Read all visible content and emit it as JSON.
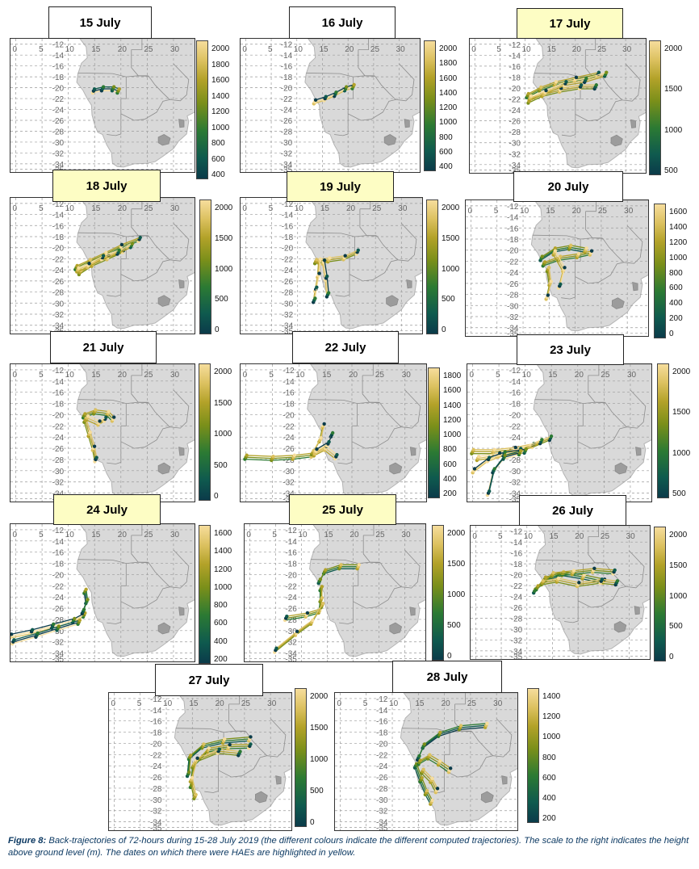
{
  "figure": {
    "caption_label": "Figure 8:",
    "caption_text": " Back-trajectories of 72-hours during 15-28 July 2019 (the different colours indicate the different computed trajectories). The scale to the right indicates the height above ground level (m). The dates on which there were HAEs are highlighted in yellow."
  },
  "map_axes": {
    "longitude_labels": [
      "0",
      "5",
      "10",
      "15",
      "20",
      "25",
      "30"
    ],
    "latitude_labels": [
      "-12",
      "-14",
      "-16",
      "-18",
      "-20",
      "-22",
      "-24",
      "-26",
      "-28",
      "-30",
      "-32",
      "-34",
      "-35"
    ]
  },
  "colors": {
    "hae_highlight": "#fdfdc4",
    "land": "#d9d9d9",
    "grid": "#9a9a9a",
    "traj_low": "#0b3b4a",
    "traj_mid": "#2c7a33",
    "traj_high": "#f6dd9c",
    "caption": "#0d3a63"
  },
  "panels": [
    {
      "date": "15 July",
      "hae": false,
      "scale": [
        "2000",
        "1800",
        "1600",
        "1400",
        "1200",
        "1000",
        "800",
        "600",
        "400"
      ]
    },
    {
      "date": "16 July",
      "hae": false,
      "scale": [
        "2000",
        "1800",
        "1600",
        "1400",
        "1200",
        "1000",
        "800",
        "600",
        "400"
      ]
    },
    {
      "date": "17 July",
      "hae": true,
      "scale": [
        "2000",
        "1500",
        "1000",
        "500"
      ]
    },
    {
      "date": "18 July",
      "hae": true,
      "scale": [
        "2000",
        "1500",
        "1000",
        "500",
        "0"
      ]
    },
    {
      "date": "19 July",
      "hae": true,
      "scale": [
        "2000",
        "1500",
        "1000",
        "500",
        "0"
      ]
    },
    {
      "date": "20 July",
      "hae": false,
      "scale": [
        "1600",
        "1400",
        "1200",
        "1000",
        "800",
        "600",
        "400",
        "200",
        "0"
      ]
    },
    {
      "date": "21 July",
      "hae": false,
      "scale": [
        "2000",
        "1500",
        "1000",
        "500",
        "0"
      ]
    },
    {
      "date": "22 July",
      "hae": false,
      "scale": [
        "1800",
        "1600",
        "1400",
        "1200",
        "1000",
        "800",
        "600",
        "400",
        "200"
      ]
    },
    {
      "date": "23 July",
      "hae": false,
      "scale": [
        "2000",
        "1500",
        "1000",
        "500"
      ]
    },
    {
      "date": "24 July",
      "hae": true,
      "scale": [
        "1600",
        "1400",
        "1200",
        "1000",
        "800",
        "600",
        "400",
        "200"
      ]
    },
    {
      "date": "25 July",
      "hae": true,
      "scale": [
        "2000",
        "1500",
        "1000",
        "500",
        "0"
      ]
    },
    {
      "date": "26 July",
      "hae": false,
      "scale": [
        "2000",
        "1500",
        "1000",
        "500",
        "0"
      ]
    },
    {
      "date": "27 July",
      "hae": false,
      "scale": [
        "2000",
        "1500",
        "1000",
        "500",
        "0"
      ]
    },
    {
      "date": "28 July",
      "hae": false,
      "scale": [
        "1400",
        "1200",
        "1000",
        "800",
        "600",
        "400",
        "200"
      ]
    }
  ]
}
